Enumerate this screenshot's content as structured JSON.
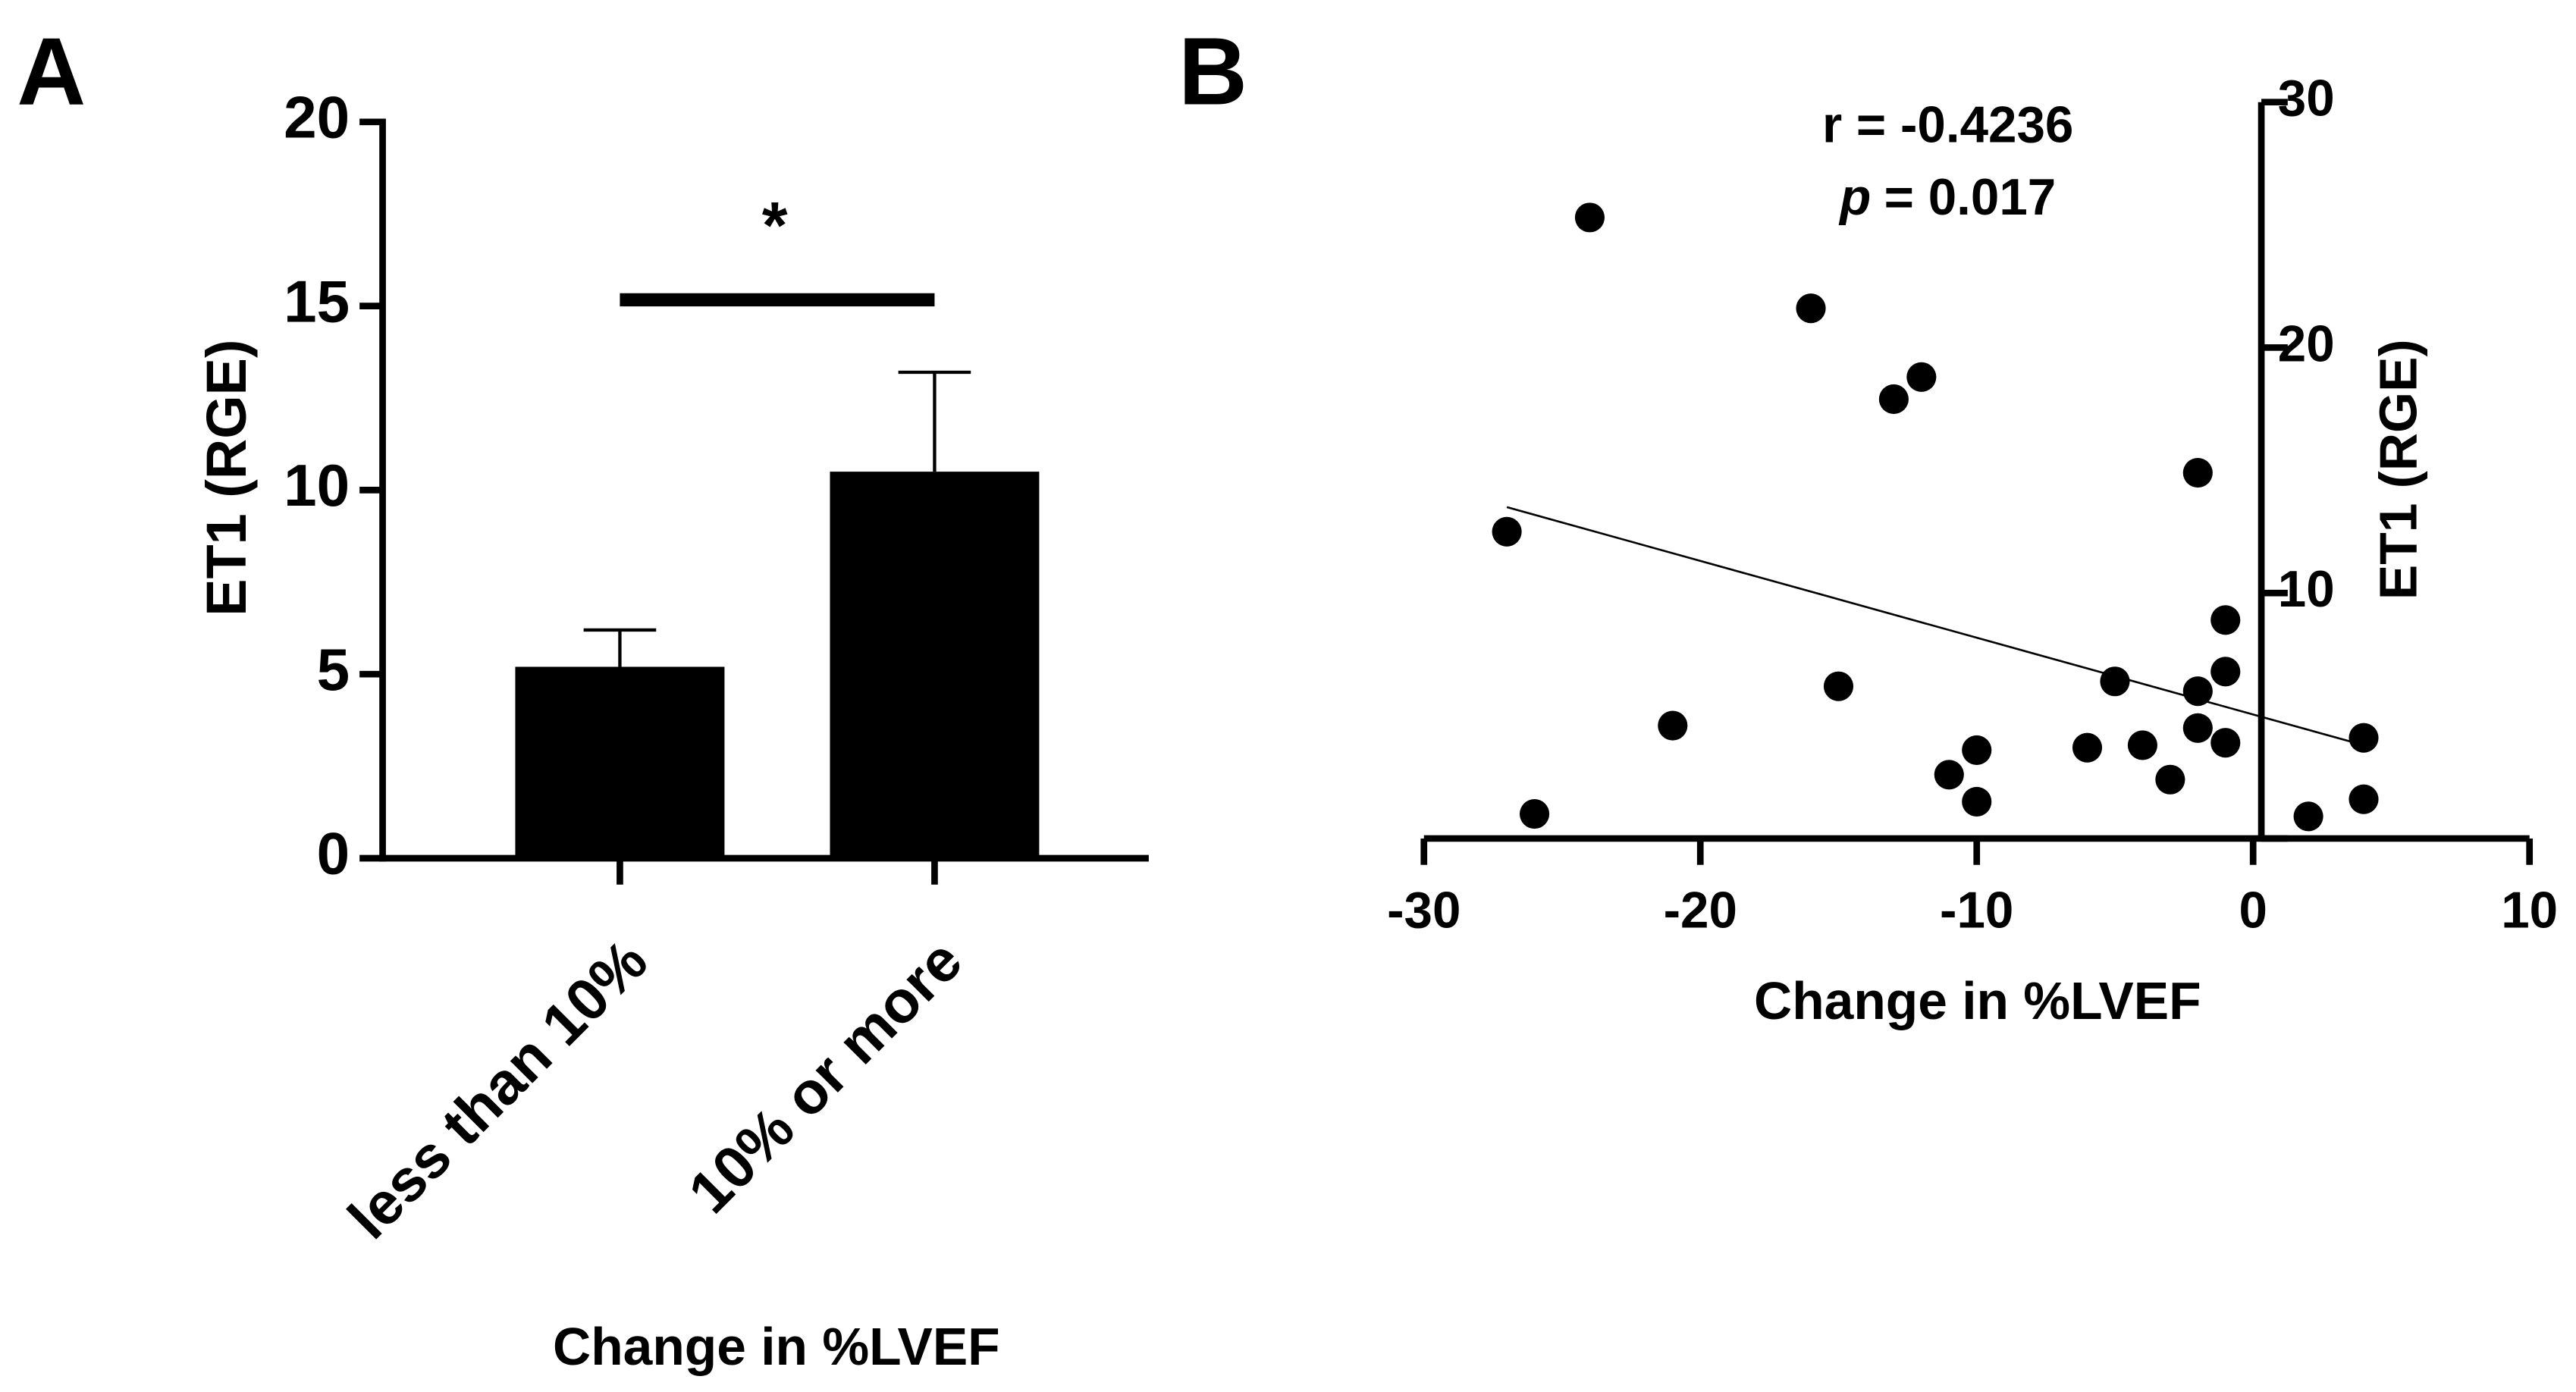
{
  "chart_data": [
    {
      "type": "bar",
      "panel_label": "A",
      "ylabel": "ET1 (RGE)",
      "xlabel": "Change in %LVEF",
      "categories": [
        "less than 10%",
        "10% or more"
      ],
      "values": [
        5.2,
        10.5
      ],
      "errors": [
        1.0,
        2.7
      ],
      "color": "#000000",
      "ylim": [
        0,
        20
      ],
      "yticks": [
        0,
        5,
        10,
        15,
        20
      ],
      "significance": "*"
    },
    {
      "type": "scatter",
      "panel_label": "B",
      "ylabel": "ET1 (RGE)",
      "xlabel": "Change in %LVEF",
      "stat_r": "r = -0.4236",
      "stat_p_symbol": "p",
      "stat_p_value": "= 0.017",
      "x": [
        -24,
        -27,
        -26,
        -21,
        -16,
        -15,
        -13,
        -12,
        -11,
        -10,
        -10,
        -6,
        -5,
        -4,
        -3,
        -2,
        -2,
        -2,
        -1,
        -1,
        -1,
        2,
        4,
        4
      ],
      "values": [
        25.3,
        12.5,
        1.0,
        4.6,
        21.6,
        6.2,
        17.9,
        18.8,
        2.6,
        3.6,
        1.5,
        3.7,
        6.4,
        3.8,
        2.4,
        14.9,
        6.0,
        4.5,
        8.9,
        6.8,
        3.9,
        0.9,
        4.1,
        1.6
      ],
      "fit_line": {
        "x": [
          -27,
          4
        ],
        "y": [
          13.5,
          3.8
        ]
      },
      "color": "#000000",
      "xlim": [
        -30,
        10
      ],
      "xticks": [
        -30,
        -20,
        -10,
        0,
        10
      ],
      "ylim": [
        0,
        30
      ],
      "yticks": [
        0,
        10,
        20,
        30
      ],
      "y_axis_side": "right"
    }
  ]
}
